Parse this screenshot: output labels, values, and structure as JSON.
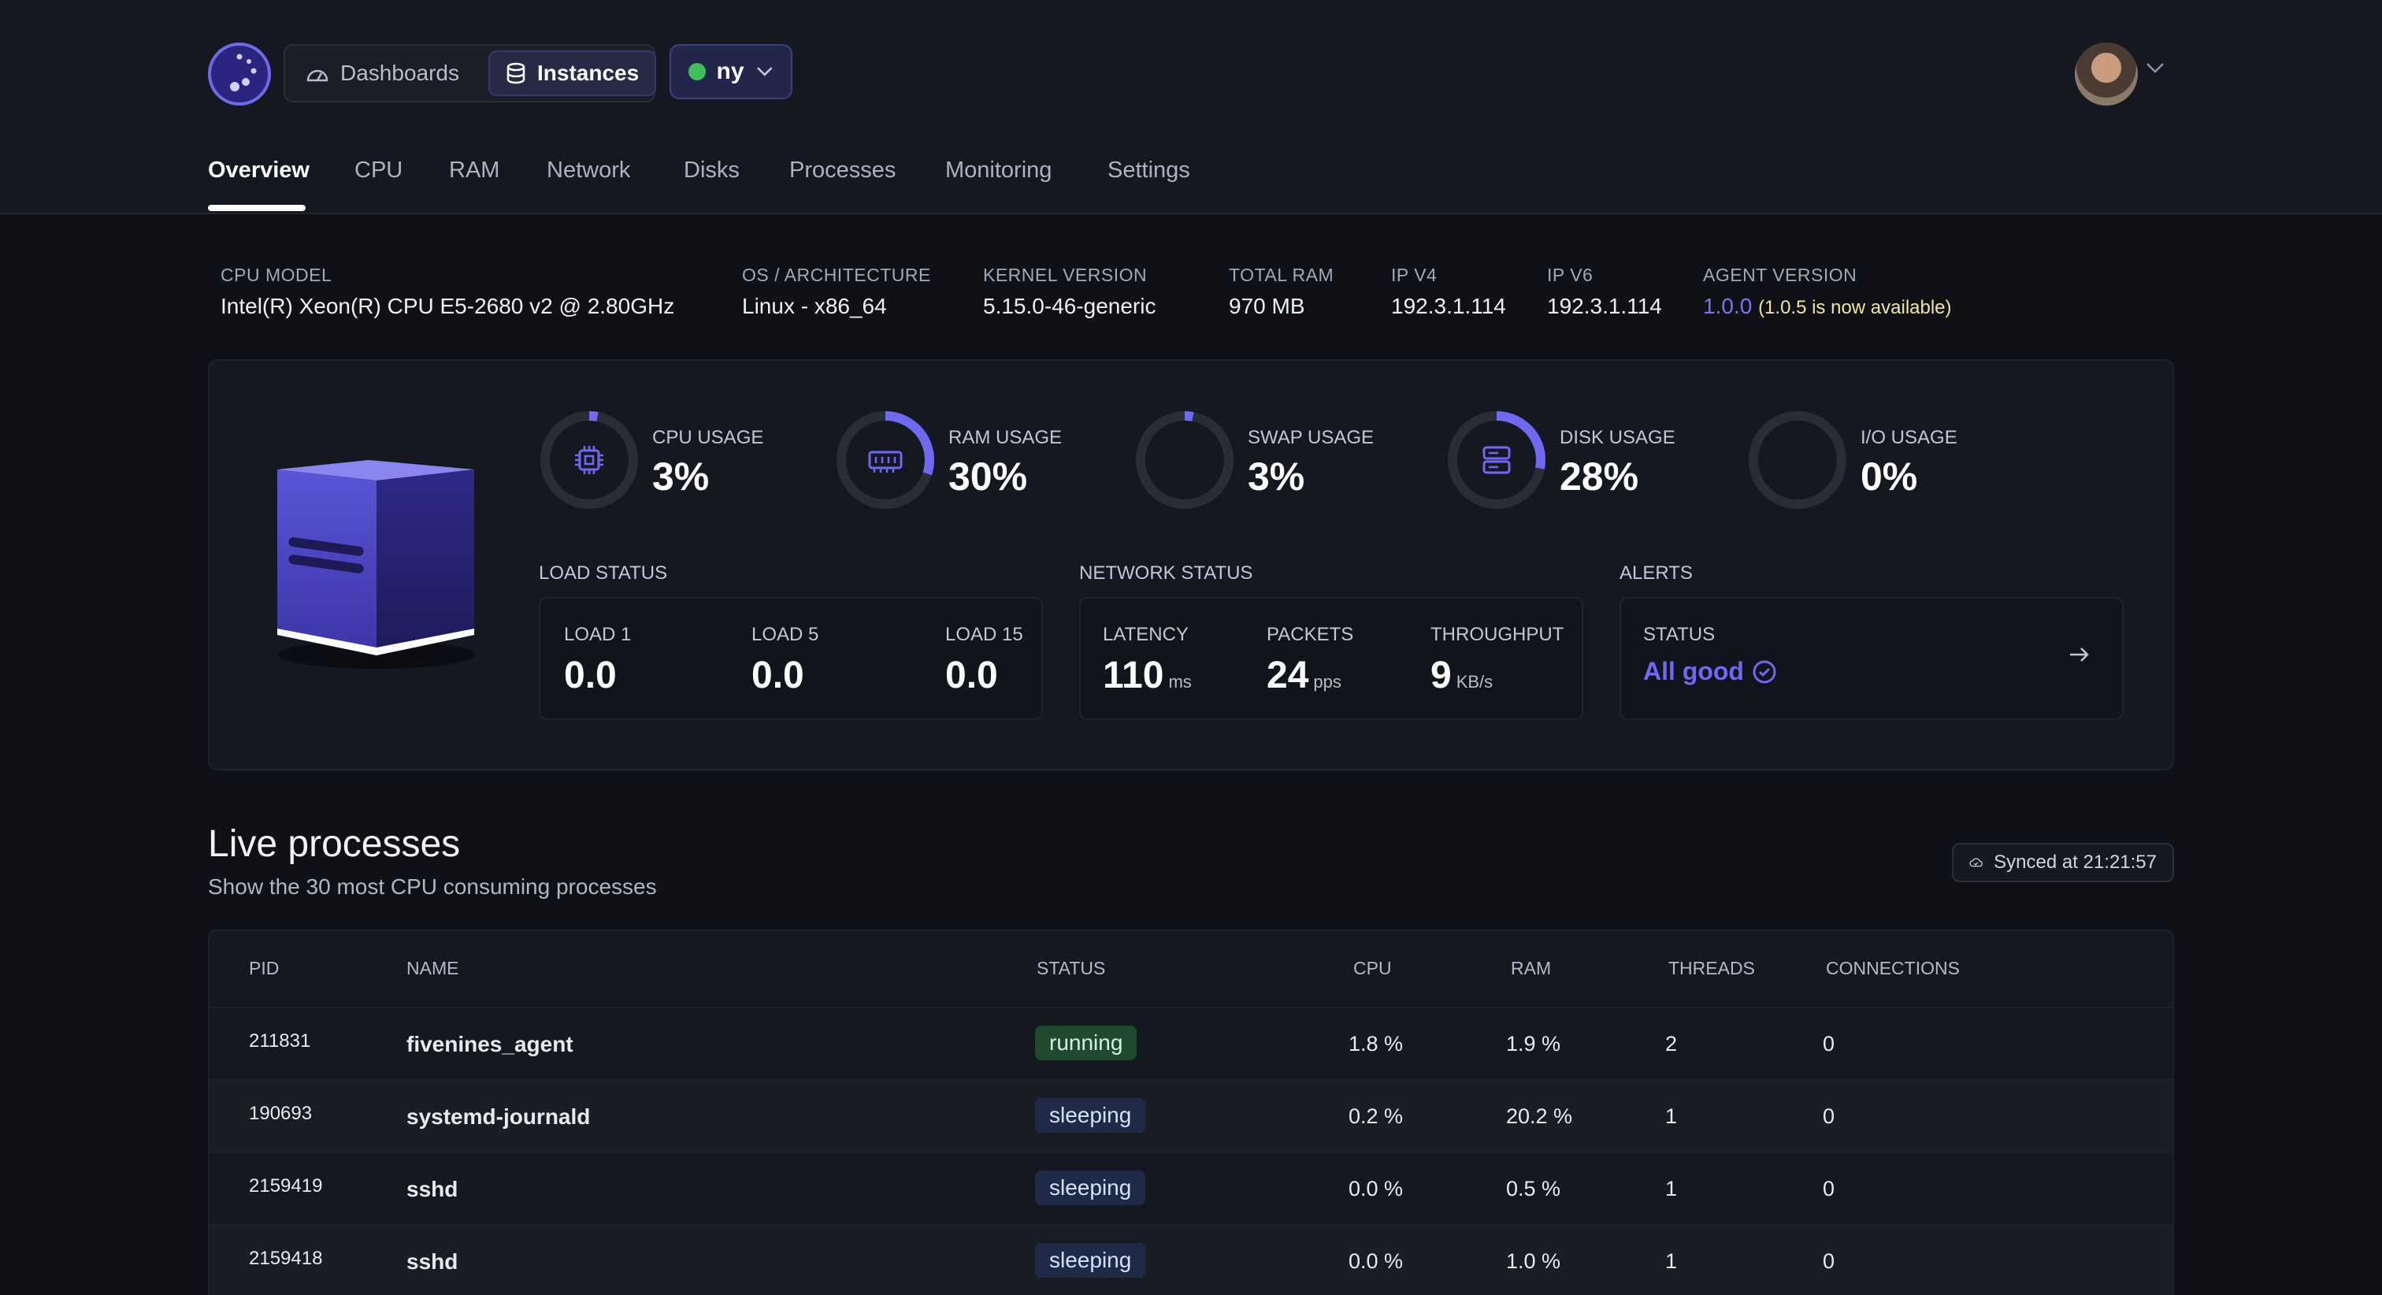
{
  "nav": {
    "dashboards_label": "Dashboards",
    "instances_label": "Instances",
    "instance_selector": "ny"
  },
  "tabs": [
    "Overview",
    "CPU",
    "RAM",
    "Network",
    "Disks",
    "Processes",
    "Monitoring",
    "Settings"
  ],
  "system_info": {
    "cpu_model": {
      "label": "CPU MODEL",
      "value": "Intel(R) Xeon(R) CPU E5-2680 v2 @ 2.80GHz"
    },
    "os": {
      "label": "OS / ARCHITECTURE",
      "value": "Linux - x86_64"
    },
    "kernel": {
      "label": "KERNEL VERSION",
      "value": "5.15.0-46-generic"
    },
    "ram": {
      "label": "TOTAL RAM",
      "value": "970 MB"
    },
    "ipv4": {
      "label": "IP V4",
      "value": "192.3.1.114"
    },
    "ipv6": {
      "label": "IP V6",
      "value": "192.3.1.114"
    },
    "agent": {
      "label": "AGENT VERSION",
      "value": "1.0.0",
      "note": "(1.0.5 is now available)"
    }
  },
  "usage": {
    "cpu": {
      "label": "CPU USAGE",
      "value": "3%",
      "fraction": 0.03
    },
    "ram": {
      "label": "RAM USAGE",
      "value": "30%",
      "fraction": 0.3
    },
    "swap": {
      "label": "SWAP USAGE",
      "value": "3%",
      "fraction": 0.03
    },
    "disk": {
      "label": "DISK USAGE",
      "value": "28%",
      "fraction": 0.28
    },
    "io": {
      "label": "I/O USAGE",
      "value": "0%",
      "fraction": 0.0
    }
  },
  "load_status": {
    "title": "LOAD STATUS",
    "load1": {
      "label": "LOAD 1",
      "value": "0.0"
    },
    "load5": {
      "label": "LOAD 5",
      "value": "0.0"
    },
    "load15": {
      "label": "LOAD 15",
      "value": "0.0"
    }
  },
  "network_status": {
    "title": "NETWORK STATUS",
    "latency": {
      "label": "LATENCY",
      "value": "110",
      "unit": "ms"
    },
    "packets": {
      "label": "PACKETS",
      "value": "24",
      "unit": "pps"
    },
    "throughput": {
      "label": "THROUGHPUT",
      "value": "9",
      "unit": "KB/s"
    }
  },
  "alerts": {
    "title": "ALERTS",
    "status_label": "STATUS",
    "status_value": "All good"
  },
  "processes": {
    "title": "Live processes",
    "subtitle": "Show the 30 most CPU consuming processes",
    "synced": "Synced at 21:21:57",
    "columns": {
      "pid": "PID",
      "name": "NAME",
      "status": "STATUS",
      "cpu": "CPU",
      "ram": "RAM",
      "threads": "THREADS",
      "connections": "CONNECTIONS"
    },
    "rows": [
      {
        "pid": "211831",
        "name": "fivenines_agent",
        "status": "running",
        "cpu": "1.8 %",
        "ram": "1.9 %",
        "threads": "2",
        "connections": "0"
      },
      {
        "pid": "190693",
        "name": "systemd-journald",
        "status": "sleeping",
        "cpu": "0.2 %",
        "ram": "20.2 %",
        "threads": "1",
        "connections": "0"
      },
      {
        "pid": "2159419",
        "name": "sshd",
        "status": "sleeping",
        "cpu": "0.0 %",
        "ram": "0.5 %",
        "threads": "1",
        "connections": "0"
      },
      {
        "pid": "2159418",
        "name": "sshd",
        "status": "sleeping",
        "cpu": "0.0 %",
        "ram": "1.0 %",
        "threads": "1",
        "connections": "0"
      }
    ]
  },
  "colors": {
    "accent": "#6f68f0",
    "running_badge": "#1f4a2d",
    "sleeping_badge": "#1e2a47",
    "online_dot": "#3fbf5a"
  },
  "icons": [
    "app-logo-icon",
    "dashboard-gauge-icon",
    "database-icon",
    "chevron-down-icon",
    "cpu-chip-icon",
    "memory-icon",
    "server-drive-icon",
    "check-circle-icon",
    "arrow-right-icon",
    "cloud-check-icon",
    "server-box-illustration"
  ]
}
